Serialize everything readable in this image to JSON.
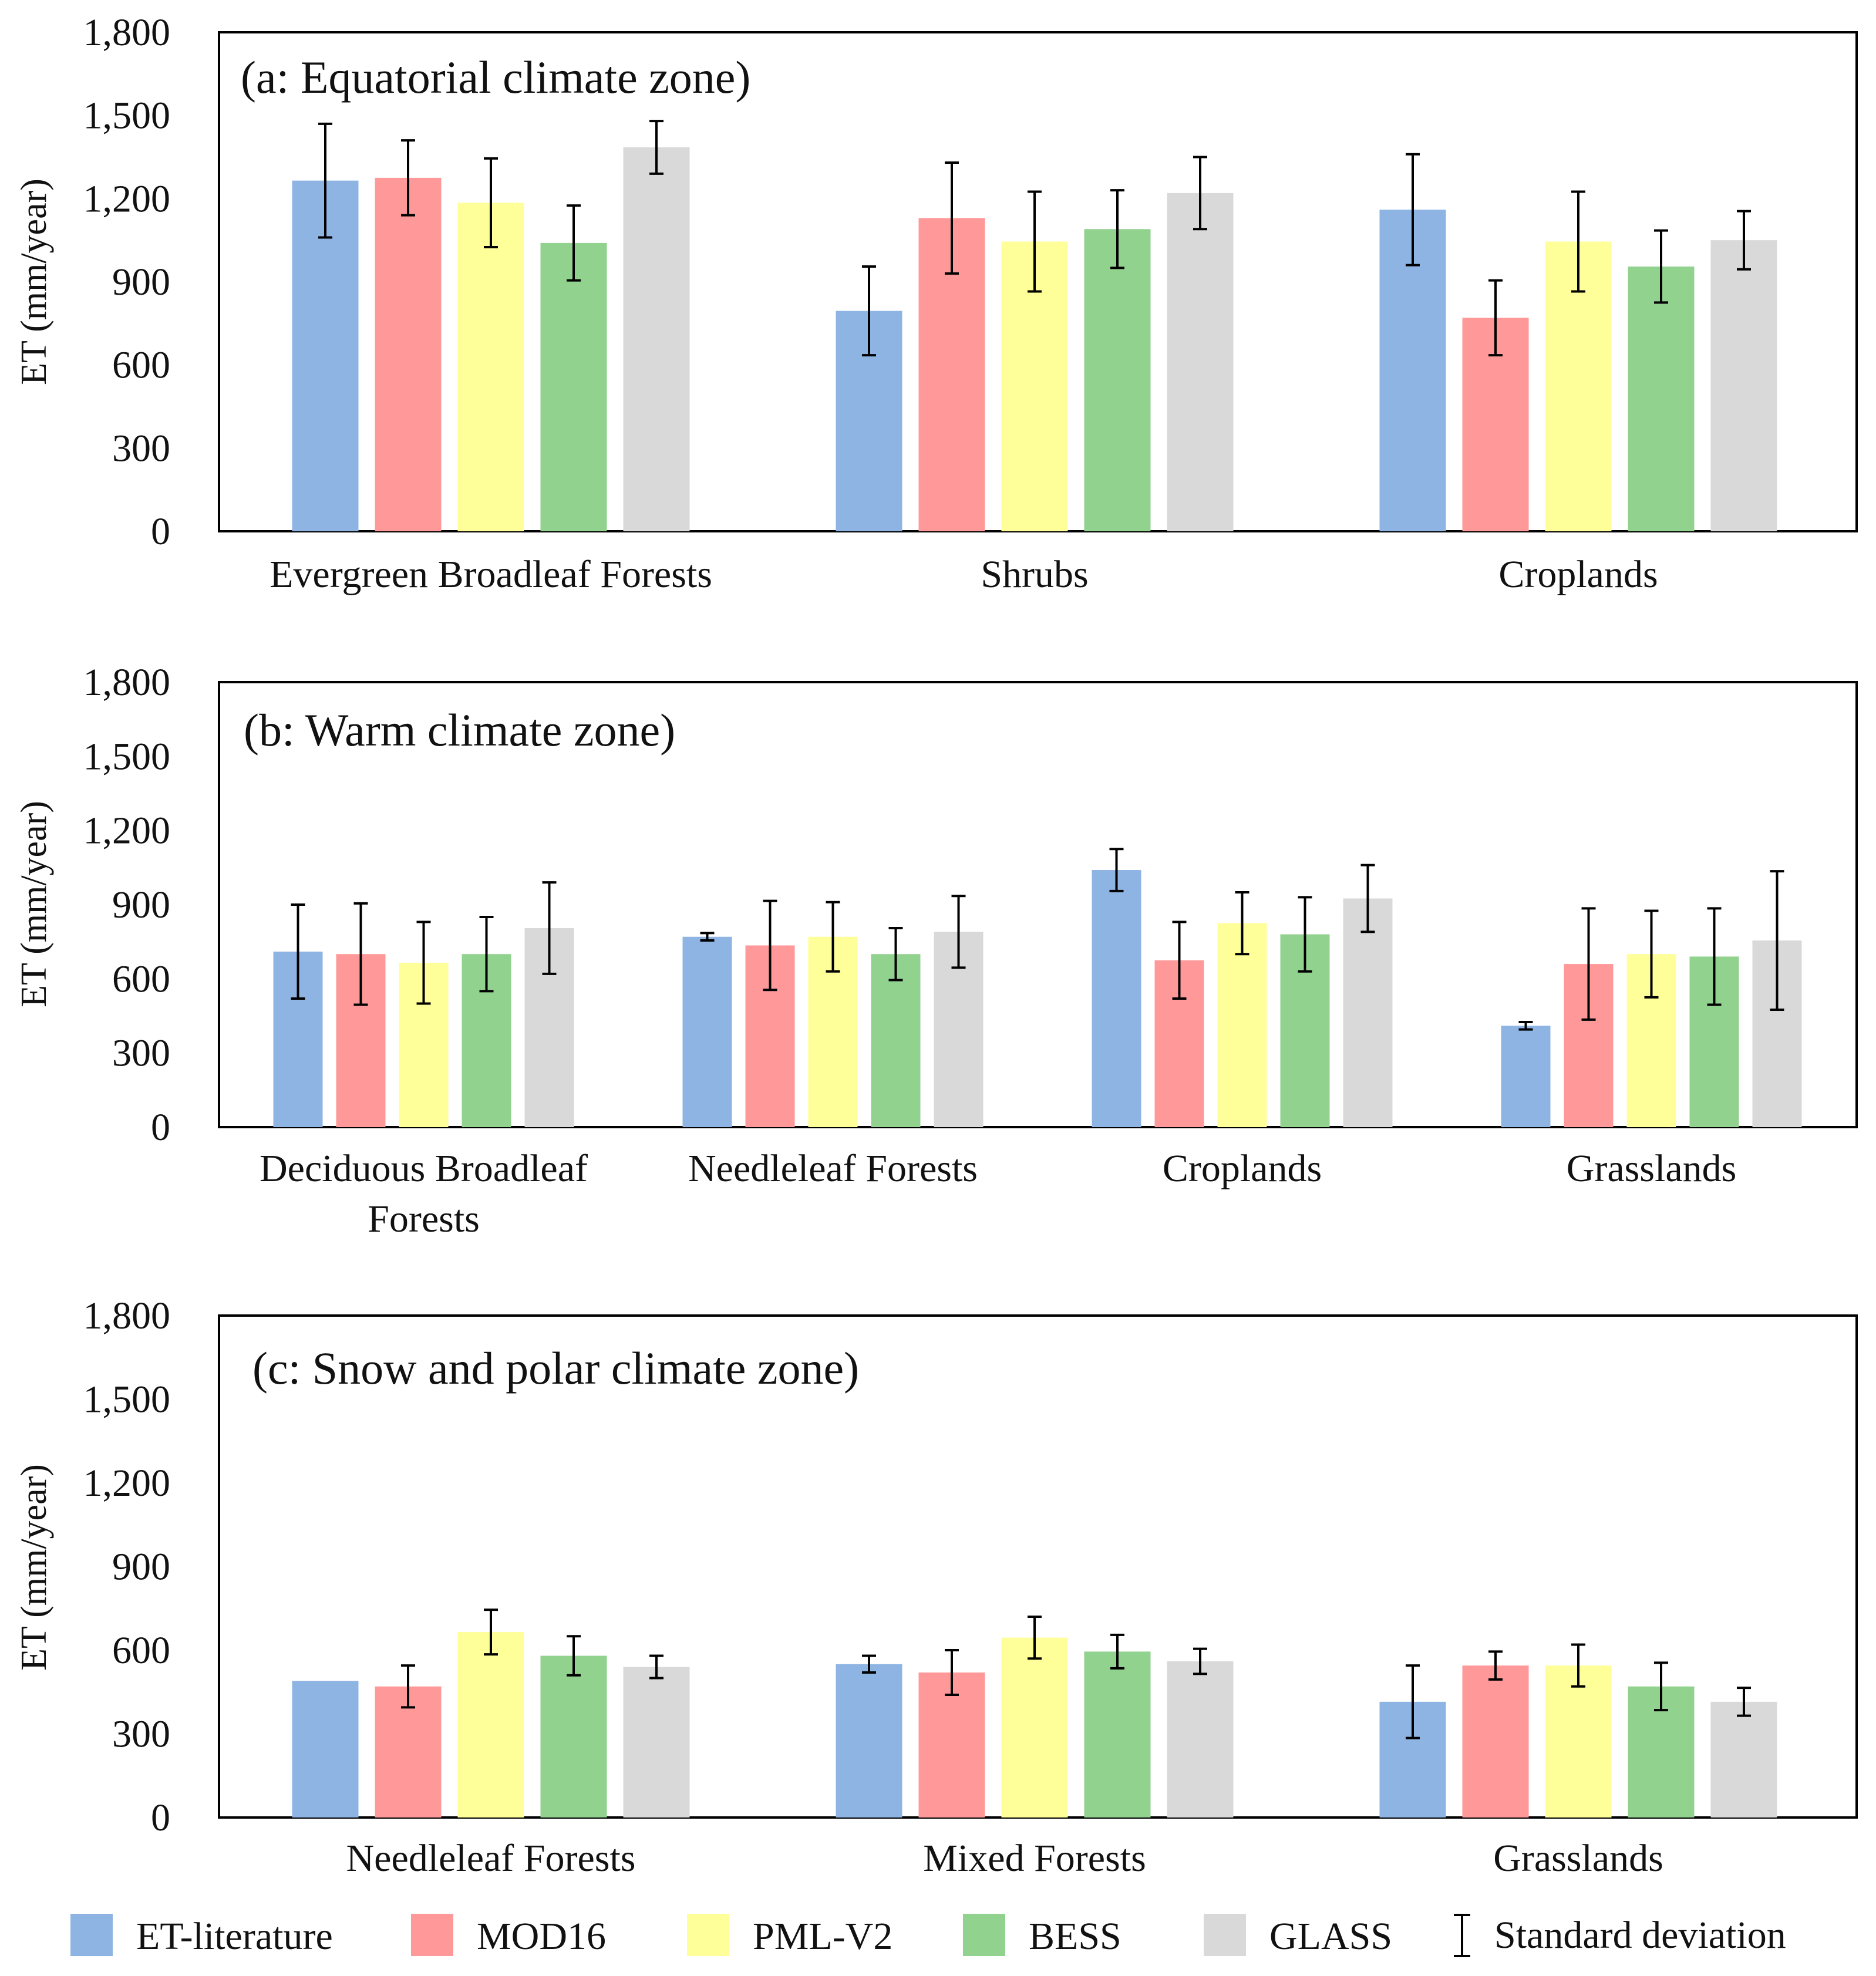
{
  "figure": {
    "y_axis_label": "ET (mm/year)",
    "legend": [
      {
        "key": "et_literature",
        "label": "ET-literature",
        "color": "#8eb4e3"
      },
      {
        "key": "mod16",
        "label": "MOD16",
        "color": "#ff9999"
      },
      {
        "key": "pml_v2",
        "label": "PML-V2",
        "color": "#ffff99"
      },
      {
        "key": "bess",
        "label": "BESS",
        "color": "#92d28f"
      },
      {
        "key": "glass",
        "label": "GLASS",
        "color": "#d9d9d9"
      }
    ],
    "errorbar_label": "Standard deviation"
  },
  "chart_data": [
    {
      "type": "bar",
      "title": "(a: Equatorial climate zone)",
      "ylabel": "ET (mm/year)",
      "ylim": [
        0,
        1800
      ],
      "yticks": [
        0,
        300,
        600,
        900,
        1200,
        1500,
        1800
      ],
      "ytick_labels": [
        "0",
        "300",
        "600",
        "900",
        "1,200",
        "1,500",
        "1,800"
      ],
      "categories": [
        [
          "Evergreen Broadleaf Forests"
        ],
        [
          "Shrubs"
        ],
        [
          "Croplands"
        ]
      ],
      "series": [
        {
          "name": "ET-literature",
          "values": [
            1265,
            795,
            1160
          ],
          "errors": [
            205,
            160,
            200
          ]
        },
        {
          "name": "MOD16",
          "values": [
            1275,
            1130,
            770
          ],
          "errors": [
            135,
            200,
            135
          ]
        },
        {
          "name": "PML-V2",
          "values": [
            1185,
            1045,
            1045
          ],
          "errors": [
            160,
            180,
            180
          ]
        },
        {
          "name": "BESS",
          "values": [
            1040,
            1090,
            955
          ],
          "errors": [
            135,
            140,
            130
          ]
        },
        {
          "name": "GLASS",
          "values": [
            1385,
            1220,
            1050
          ],
          "errors": [
            95,
            130,
            105
          ]
        }
      ]
    },
    {
      "type": "bar",
      "title": "(b: Warm climate zone)",
      "ylabel": "ET (mm/year)",
      "ylim": [
        0,
        1800
      ],
      "yticks": [
        0,
        300,
        600,
        900,
        1200,
        1500,
        1800
      ],
      "ytick_labels": [
        "0",
        "300",
        "600",
        "900",
        "1,200",
        "1,500",
        "1,800"
      ],
      "categories": [
        [
          "Deciduous Broadleaf",
          "Forests"
        ],
        [
          "Needleleaf Forests"
        ],
        [
          "Croplands"
        ],
        [
          "Grasslands"
        ]
      ],
      "series": [
        {
          "name": "ET-literature",
          "values": [
            710,
            770,
            1040,
            410
          ],
          "errors": [
            190,
            15,
            85,
            15
          ]
        },
        {
          "name": "MOD16",
          "values": [
            700,
            735,
            675,
            660
          ],
          "errors": [
            205,
            180,
            155,
            225
          ]
        },
        {
          "name": "PML-V2",
          "values": [
            665,
            770,
            825,
            700
          ],
          "errors": [
            165,
            140,
            125,
            175
          ]
        },
        {
          "name": "BESS",
          "values": [
            700,
            700,
            780,
            690
          ],
          "errors": [
            150,
            105,
            150,
            195
          ]
        },
        {
          "name": "GLASS",
          "values": [
            805,
            790,
            925,
            755
          ],
          "errors": [
            185,
            145,
            135,
            280
          ]
        }
      ]
    },
    {
      "type": "bar",
      "title": "(c: Snow and polar climate zone)",
      "ylabel": "ET (mm/year)",
      "ylim": [
        0,
        1800
      ],
      "yticks": [
        0,
        300,
        600,
        900,
        1200,
        1500,
        1800
      ],
      "ytick_labels": [
        "0",
        "300",
        "600",
        "900",
        "1,200",
        "1,500",
        "1,800"
      ],
      "categories": [
        [
          "Needleleaf Forests"
        ],
        [
          "Mixed Forests"
        ],
        [
          "Grasslands"
        ]
      ],
      "series": [
        {
          "name": "ET-literature",
          "values": [
            490,
            550,
            415
          ],
          "errors": [
            0,
            30,
            130
          ]
        },
        {
          "name": "MOD16",
          "values": [
            470,
            520,
            545
          ],
          "errors": [
            75,
            80,
            50
          ]
        },
        {
          "name": "PML-V2",
          "values": [
            665,
            645,
            545
          ],
          "errors": [
            80,
            75,
            75
          ]
        },
        {
          "name": "BESS",
          "values": [
            580,
            595,
            470
          ],
          "errors": [
            70,
            60,
            85
          ]
        },
        {
          "name": "GLASS",
          "values": [
            540,
            560,
            415
          ],
          "errors": [
            40,
            45,
            50
          ]
        }
      ]
    }
  ]
}
